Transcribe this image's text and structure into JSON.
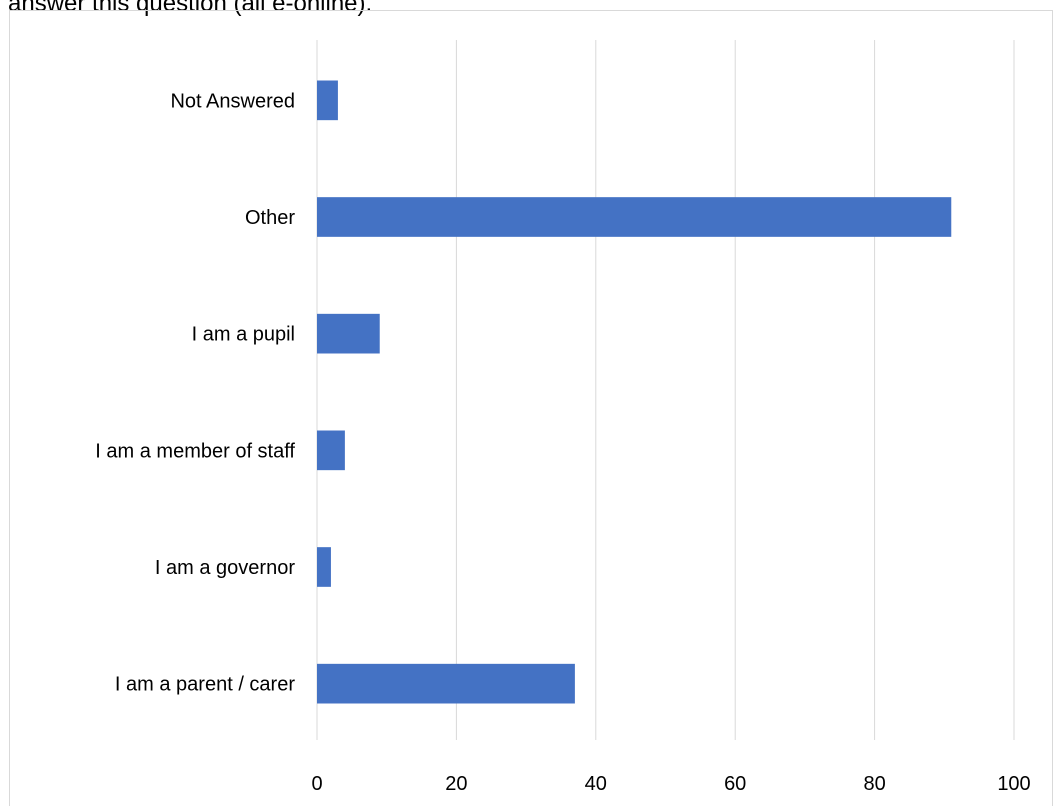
{
  "intro_text": "answer this question (all e-online).",
  "chart_data": {
    "type": "bar",
    "orientation": "horizontal",
    "title": "",
    "xlabel": "",
    "ylabel": "",
    "categories": [
      "Not Answered",
      "Other",
      "I am a pupil",
      "I am a member of staff",
      "I am a governor",
      "I am a parent / carer"
    ],
    "values": [
      3,
      91,
      9,
      4,
      2,
      37
    ],
    "xlim": [
      0,
      100
    ],
    "xticks": [
      "0",
      "20",
      "40",
      "60",
      "80",
      "100"
    ],
    "grid": true,
    "legend": "none",
    "bar_color": "#4472c4",
    "grid_color": "#d9d9d9"
  }
}
